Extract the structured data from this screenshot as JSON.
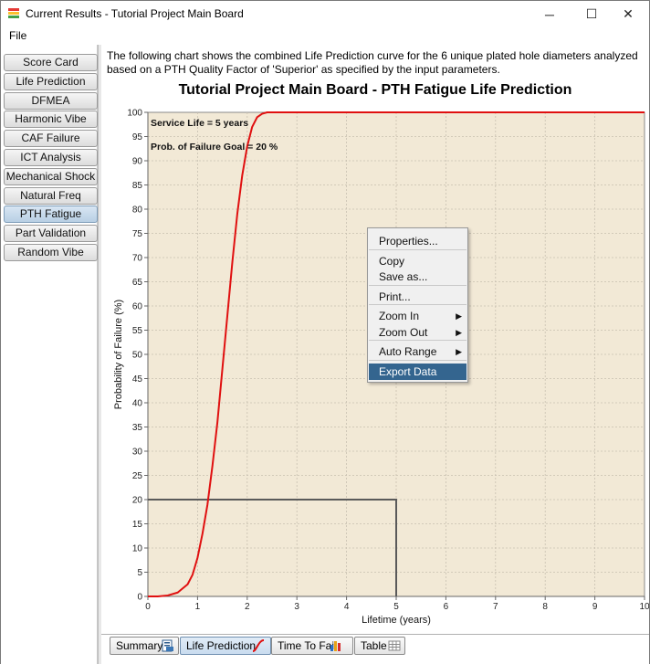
{
  "window": {
    "title": "Current Results - Tutorial Project Main Board",
    "minimize_glyph": "─",
    "maximize_glyph": "☐",
    "close_glyph": "✕"
  },
  "menu": {
    "file": "File"
  },
  "sidebar": {
    "items": [
      {
        "label": "Score Card",
        "selected": false
      },
      {
        "label": "Life Prediction",
        "selected": false
      },
      {
        "label": "DFMEA",
        "selected": false
      },
      {
        "label": "Harmonic Vibe",
        "selected": false
      },
      {
        "label": "CAF Failure",
        "selected": false
      },
      {
        "label": "ICT Analysis",
        "selected": false
      },
      {
        "label": "Mechanical Shock",
        "selected": false
      },
      {
        "label": "Natural Freq",
        "selected": false
      },
      {
        "label": "PTH Fatigue",
        "selected": true
      },
      {
        "label": "Part Validation",
        "selected": false
      },
      {
        "label": "Random Vibe",
        "selected": false
      }
    ]
  },
  "main": {
    "description": "The following chart shows the combined Life Prediction curve for the 6 unique plated hole diameters analyzed based on a PTH Quality Factor of 'Superior' as specified by the input parameters."
  },
  "chart_data": {
    "type": "line",
    "title": "Tutorial Project Main Board - PTH Fatigue Life Prediction",
    "xlabel": "Lifetime (years)",
    "ylabel": "Probability of Failure (%)",
    "xlim": [
      0,
      10
    ],
    "ylim": [
      0,
      100
    ],
    "xticks": [
      0,
      1,
      2,
      3,
      4,
      5,
      6,
      7,
      8,
      9,
      10
    ],
    "yticks": [
      0,
      5,
      10,
      15,
      20,
      25,
      30,
      35,
      40,
      45,
      50,
      55,
      60,
      65,
      70,
      75,
      80,
      85,
      90,
      95,
      100
    ],
    "grid": true,
    "annotations": [
      "Service Life = 5 years",
      "Prob. of Failure Goal = 20 %"
    ],
    "reference_lines": {
      "service_life_years": 5,
      "failure_goal_percent": 20
    },
    "series": [
      {
        "color": "#e01010",
        "x": [
          0.0,
          0.2,
          0.4,
          0.6,
          0.8,
          0.9,
          1.0,
          1.1,
          1.2,
          1.3,
          1.4,
          1.5,
          1.6,
          1.7,
          1.8,
          1.9,
          2.0,
          2.1,
          2.2,
          2.3,
          2.4,
          2.5,
          10.0
        ],
        "y": [
          0.0,
          0.0,
          0.2,
          0.8,
          2.5,
          4.5,
          8.0,
          13.0,
          19.0,
          27.0,
          36.0,
          47.0,
          58.0,
          69.0,
          79.0,
          87.0,
          93.0,
          97.0,
          99.0,
          99.7,
          100.0,
          100.0,
          100.0
        ]
      }
    ],
    "reference_color": "#5a5a5a",
    "plot_background": "#f2e9d6"
  },
  "context_menu": {
    "items": [
      {
        "label": "Properties...",
        "has_submenu": false,
        "highlighted": false
      },
      {
        "label": "Copy",
        "has_submenu": false,
        "highlighted": false
      },
      {
        "label": "Save as...",
        "has_submenu": false,
        "highlighted": false
      },
      {
        "label": "Print...",
        "has_submenu": false,
        "highlighted": false
      },
      {
        "label": "Zoom In",
        "has_submenu": true,
        "highlighted": false
      },
      {
        "label": "Zoom Out",
        "has_submenu": true,
        "highlighted": false
      },
      {
        "label": "Auto Range",
        "has_submenu": true,
        "highlighted": false
      },
      {
        "label": "Export Data",
        "has_submenu": false,
        "highlighted": true
      }
    ],
    "submenu_arrow": "▶"
  },
  "tabs": [
    {
      "label": "Summary",
      "icon": "report-icon",
      "active": false
    },
    {
      "label": "Life Prediction",
      "icon": "curve-icon",
      "active": true
    },
    {
      "label": "Time To Fail",
      "icon": "bar-chart-icon",
      "active": false
    },
    {
      "label": "Table",
      "icon": "table-icon",
      "active": false
    }
  ],
  "colors": {
    "accent": "#34658f",
    "curve": "#e01010",
    "plot_background": "#f2e9d6"
  }
}
